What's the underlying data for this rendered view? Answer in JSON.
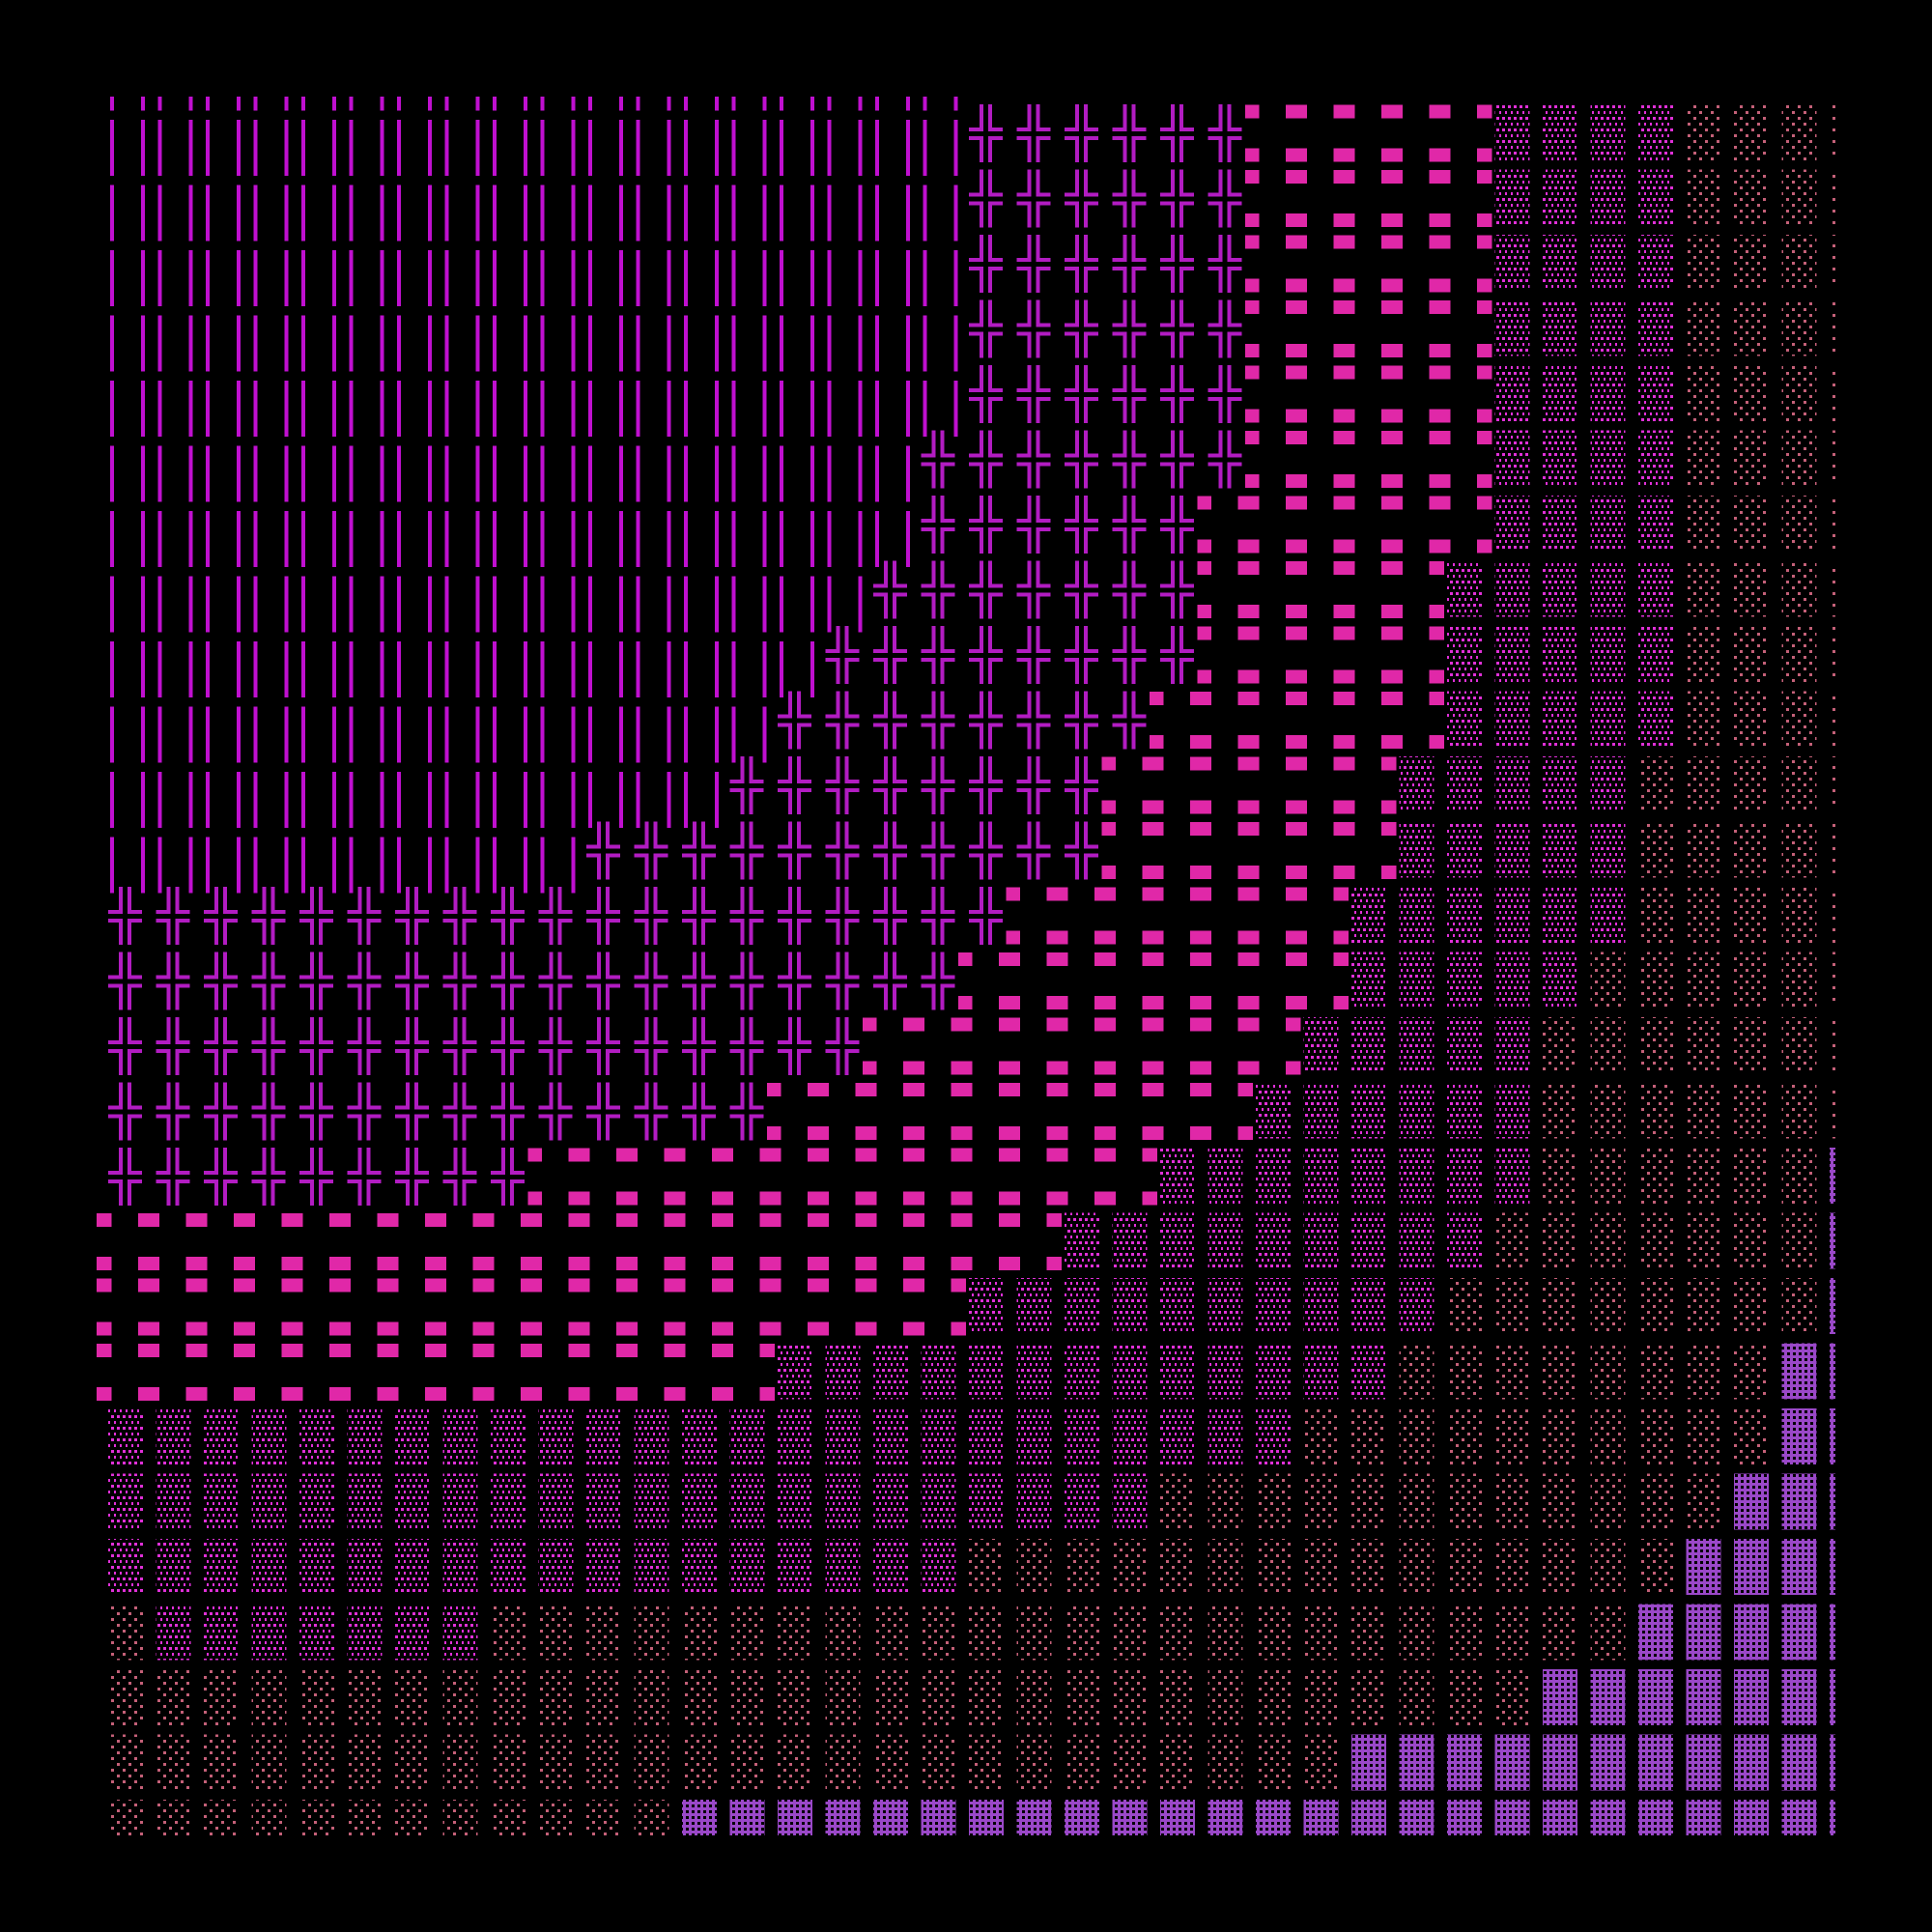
{
  "background": "#000000",
  "glyphs": {
    "║": {
      "name": "double-vertical",
      "color": "#c010d0"
    },
    "╬": {
      "name": "double-cross",
      "color": "#b21cc2"
    },
    "╍": {
      "name": "pink-dash",
      "color": "#e028a8"
    },
    "▒": {
      "name": "medium-shade",
      "color": "#e030d8"
    },
    "░": {
      "name": "light-shade",
      "color": "#c46078"
    },
    "▓": {
      "name": "dark-shade",
      "color": "#9a48c8"
    }
  },
  "grid_top_partial_row": "║║║║║║║║║║║║║║║║║║",
  "grid_rows": [
    "║║║║║║║║║║║║║║║║║║╬╬╬╬╬╬╍╍╍╍╍▒▒▒▒░░░░",
    "║║║║║║║║║║║║║║║║║║╬╬╬╬╬╬╍╍╍╍╍▒▒▒▒░░░░",
    "║║║║║║║║║║║║║║║║║║╬╬╬╬╬╬╍╍╍╍╍▒▒▒▒░░░░",
    "║║║║║║║║║║║║║║║║║║╬╬╬╬╬╬╍╍╍╍╍▒▒▒▒░░░░",
    "║║║║║║║║║║║║║║║║║║╬╬╬╬╬╬╍╍╍╍╍▒▒▒▒░░░░",
    "║║║║║║║║║║║║║║║║║╬╬╬╬╬╬╬╍╍╍╍╍▒▒▒▒░░░░",
    "║║║║║║║║║║║║║║║║║╬╬╬╬╬╬╍╍╍╍╍╍▒▒▒▒░░░░",
    "║║║║║║║║║║║║║║║║╬╬╬╬╬╬╬╍╍╍╍╍▒▒▒▒▒░░░░",
    "║║║║║║║║║║║║║║║╬╬╬╬╬╬╬╬╍╍╍╍╍▒▒▒▒▒░░░░",
    "║║║║║║║║║║║║║║╬╬╬╬╬╬╬╬╍╍╍╍╍╍▒▒▒▒▒░░░░",
    "║║║║║║║║║║║║║╬╬╬╬╬╬╬╬╍╍╍╍╍╍▒▒▒▒▒░░░░░",
    "║║║║║║║║║║╬╬╬╬╬╬╬╬╬╬╬╍╍╍╍╍╍▒▒▒▒▒░░░░░",
    "╬╬╬╬╬╬╬╬╬╬╬╬╬╬╬╬╬╬╬╍╍╍╍╍╍╍▒▒▒▒▒▒░░░░░",
    "╬╬╬╬╬╬╬╬╬╬╬╬╬╬╬╬╬╬╍╍╍╍╍╍╍╍▒▒▒▒▒░░░░░░",
    "╬╬╬╬╬╬╬╬╬╬╬╬╬╬╬╬╍╍╍╍╍╍╍╍╍▒▒▒▒▒░░░░░░░",
    "╬╬╬╬╬╬╬╬╬╬╬╬╬╬╍╍╍╍╍╍╍╍╍╍▒▒▒▒▒▒░░░░░░░",
    "╬╬╬╬╬╬╬╬╬╍╍╍╍╍╍╍╍╍╍╍╍╍▒▒▒▒▒▒▒▒░░░░░░▓",
    "╍╍╍╍╍╍╍╍╍╍╍╍╍╍╍╍╍╍╍╍▒▒▒▒▒▒▒▒▒░░░░░░░▓",
    "╍╍╍╍╍╍╍╍╍╍╍╍╍╍╍╍╍╍▒▒▒▒▒▒▒▒▒▒░░░░░░░░▓",
    "╍╍╍╍╍╍╍╍╍╍╍╍╍╍▒▒▒▒▒▒▒▒▒▒▒▒▒░░░░░░░░▓▓",
    "▒▒▒▒▒▒▒▒▒▒▒▒▒▒▒▒▒▒▒▒▒▒▒▒▒░░░░░░░░░░▓▓",
    "▒▒▒▒▒▒▒▒▒▒▒▒▒▒▒▒▒▒▒▒▒▒░░░░░░░░░░░░▓▓▓",
    "▒▒▒▒▒▒▒▒▒▒▒▒▒▒▒▒▒▒░░░░░░░░░░░░░░░▓▓▓▓",
    "░▒▒▒▒▒▒▒░░░░░░░░░░░░░░░░░░░░░░░░▓▓▓▓▓",
    "░░░░░░░░░░░░░░░░░░░░░░░░░░░░░░▓▓▓▓▓▓▓",
    "░░░░░░░░░░░░░░░░░░░░░░░░░░▓▓▓▓▓▓▓▓▓▓▓",
    "░░░░░░░░░░░░▓▓▓▓▓▓▓▓▓▓▓▓▓▓▓▓▓▓▓▓▓▓▓▓▓"
  ]
}
